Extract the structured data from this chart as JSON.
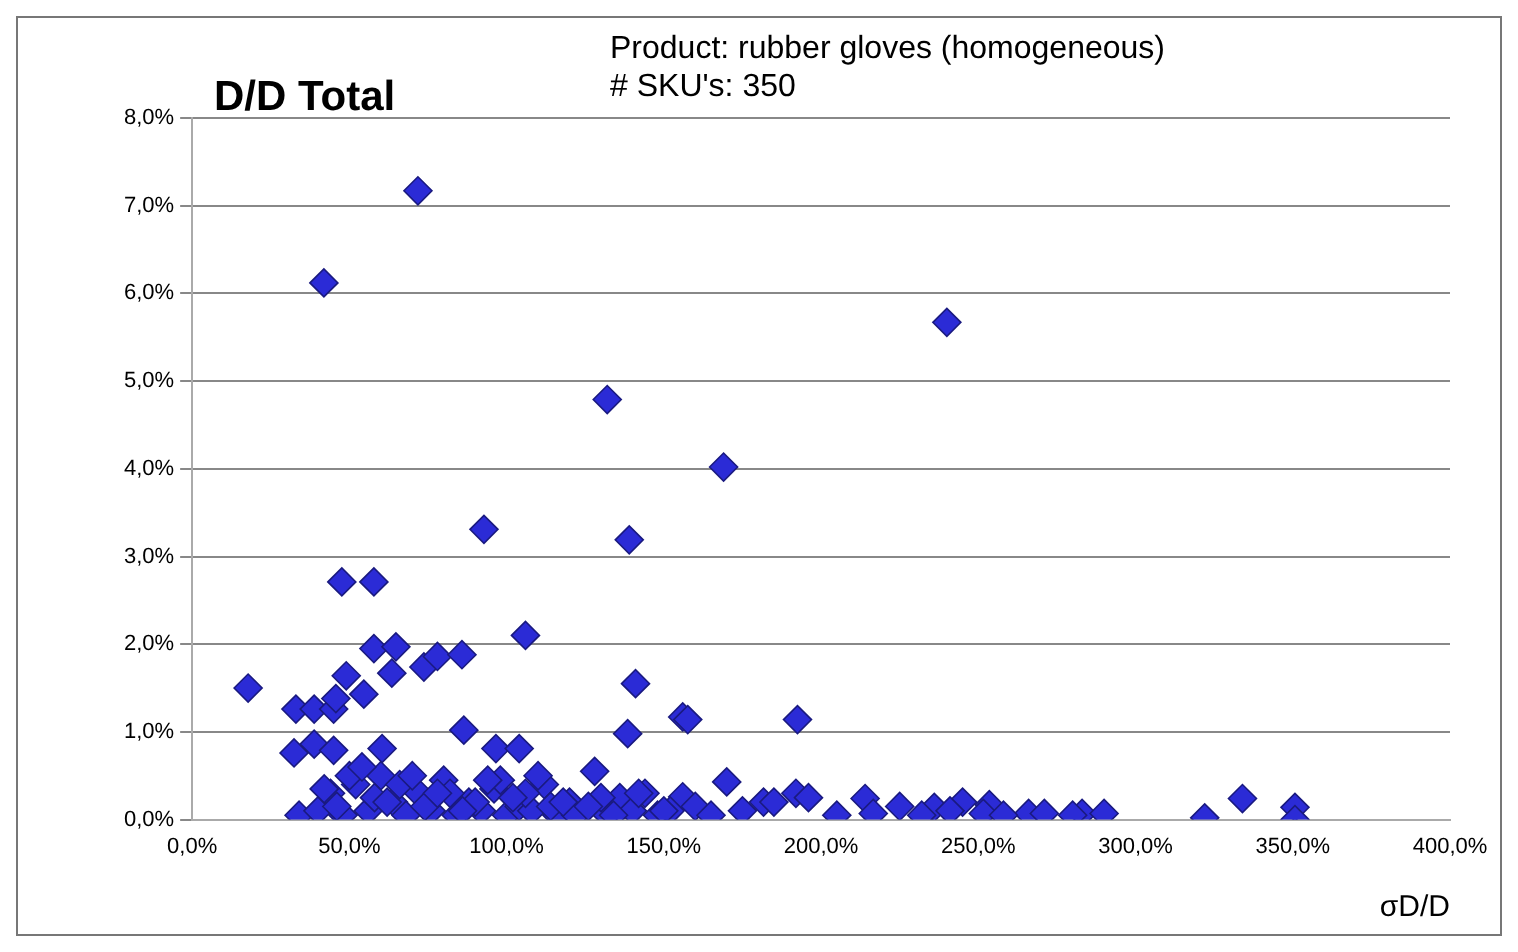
{
  "chart_data": {
    "type": "scatter",
    "title": "D/D Total",
    "annotations": [
      "Product: rubber gloves (homogeneous)",
      "# SKU's: 350"
    ],
    "xlabel": "σD/D",
    "x": [
      71.8,
      41.9,
      240,
      132,
      169,
      92.8,
      139,
      106,
      47.6,
      57.8,
      141,
      17.8,
      57.8,
      64.8,
      49,
      54.6,
      63.5,
      73.7,
      78,
      85.8,
      33,
      38.8,
      45,
      45.7,
      86.4,
      138.5,
      156,
      32.4,
      38.8,
      45,
      60.4,
      96.6,
      104,
      157.6,
      192.5,
      156,
      170,
      181.7,
      192,
      196,
      214,
      216.6,
      236,
      245,
      253.5,
      251.6,
      266,
      271,
      283,
      290,
      322,
      334,
      350.7,
      350.7,
      34,
      40,
      44,
      48,
      52,
      56,
      60,
      64,
      68,
      72,
      76,
      80,
      84,
      88,
      92,
      96,
      100,
      104,
      108,
      112,
      116,
      120,
      128,
      132,
      136,
      140,
      144,
      148,
      152,
      42,
      50,
      58,
      66,
      74,
      82,
      90,
      98,
      106,
      114,
      122,
      130,
      46,
      54,
      62,
      70,
      78,
      86,
      94,
      102,
      110,
      118,
      126,
      134,
      142,
      150,
      160,
      165,
      175,
      185,
      205,
      225,
      232,
      241,
      258,
      280
    ],
    "values": [
      7.17,
      6.12,
      5.67,
      4.79,
      4.02,
      3.31,
      3.19,
      2.1,
      2.71,
      2.71,
      1.55,
      1.5,
      1.95,
      1.97,
      1.64,
      1.43,
      1.67,
      1.74,
      1.86,
      1.88,
      1.26,
      1.26,
      1.26,
      1.38,
      1.02,
      0.98,
      1.17,
      0.76,
      0.86,
      0.79,
      0.81,
      0.81,
      0.81,
      1.14,
      1.14,
      0.26,
      0.43,
      0.2,
      0.3,
      0.25,
      0.24,
      0.07,
      0.14,
      0.2,
      0.17,
      0.07,
      0.07,
      0.07,
      0.07,
      0.07,
      0.02,
      0.24,
      0.14,
      0.0,
      0.05,
      0.1,
      0.3,
      0.05,
      0.4,
      0.1,
      0.5,
      0.2,
      0.05,
      0.3,
      0.1,
      0.45,
      0.05,
      0.2,
      0.1,
      0.35,
      0.05,
      0.15,
      0.1,
      0.4,
      0.05,
      0.2,
      0.55,
      0.05,
      0.25,
      0.1,
      0.3,
      0.05,
      0.1,
      0.35,
      0.5,
      0.25,
      0.4,
      0.15,
      0.3,
      0.2,
      0.45,
      0.3,
      0.15,
      0.05,
      0.25,
      0.15,
      0.6,
      0.2,
      0.5,
      0.3,
      0.1,
      0.45,
      0.25,
      0.5,
      0.2,
      0.15,
      0.05,
      0.3,
      0.1,
      0.15,
      0.05,
      0.1,
      0.2,
      0.05,
      0.15,
      0.05,
      0.1,
      0.05,
      0.05
    ],
    "color": "#2b2bd6",
    "marker": "diamond",
    "grid": "y",
    "xlim": [
      0,
      400
    ],
    "xticks": [
      {
        "value": 0,
        "label": "0,0%"
      },
      {
        "value": 50,
        "label": "50,0%"
      },
      {
        "value": 100,
        "label": "100,0%"
      },
      {
        "value": 150,
        "label": "150,0%"
      },
      {
        "value": 200,
        "label": "200,0%"
      },
      {
        "value": 250,
        "label": "250,0%"
      },
      {
        "value": 300,
        "label": "300,0%"
      },
      {
        "value": 350,
        "label": "350,0%"
      },
      {
        "value": 400,
        "label": "400,0%"
      }
    ],
    "ylim": [
      0,
      8
    ],
    "yticks": [
      {
        "value": 0,
        "label": "0,0%"
      },
      {
        "value": 1,
        "label": "1,0%"
      },
      {
        "value": 2,
        "label": "2,0%"
      },
      {
        "value": 3,
        "label": "3,0%"
      },
      {
        "value": 4,
        "label": "4,0%"
      },
      {
        "value": 5,
        "label": "5,0%"
      },
      {
        "value": 6,
        "label": "6,0%"
      },
      {
        "value": 7,
        "label": "7,0%"
      },
      {
        "value": 8,
        "label": "8,0%"
      }
    ]
  }
}
